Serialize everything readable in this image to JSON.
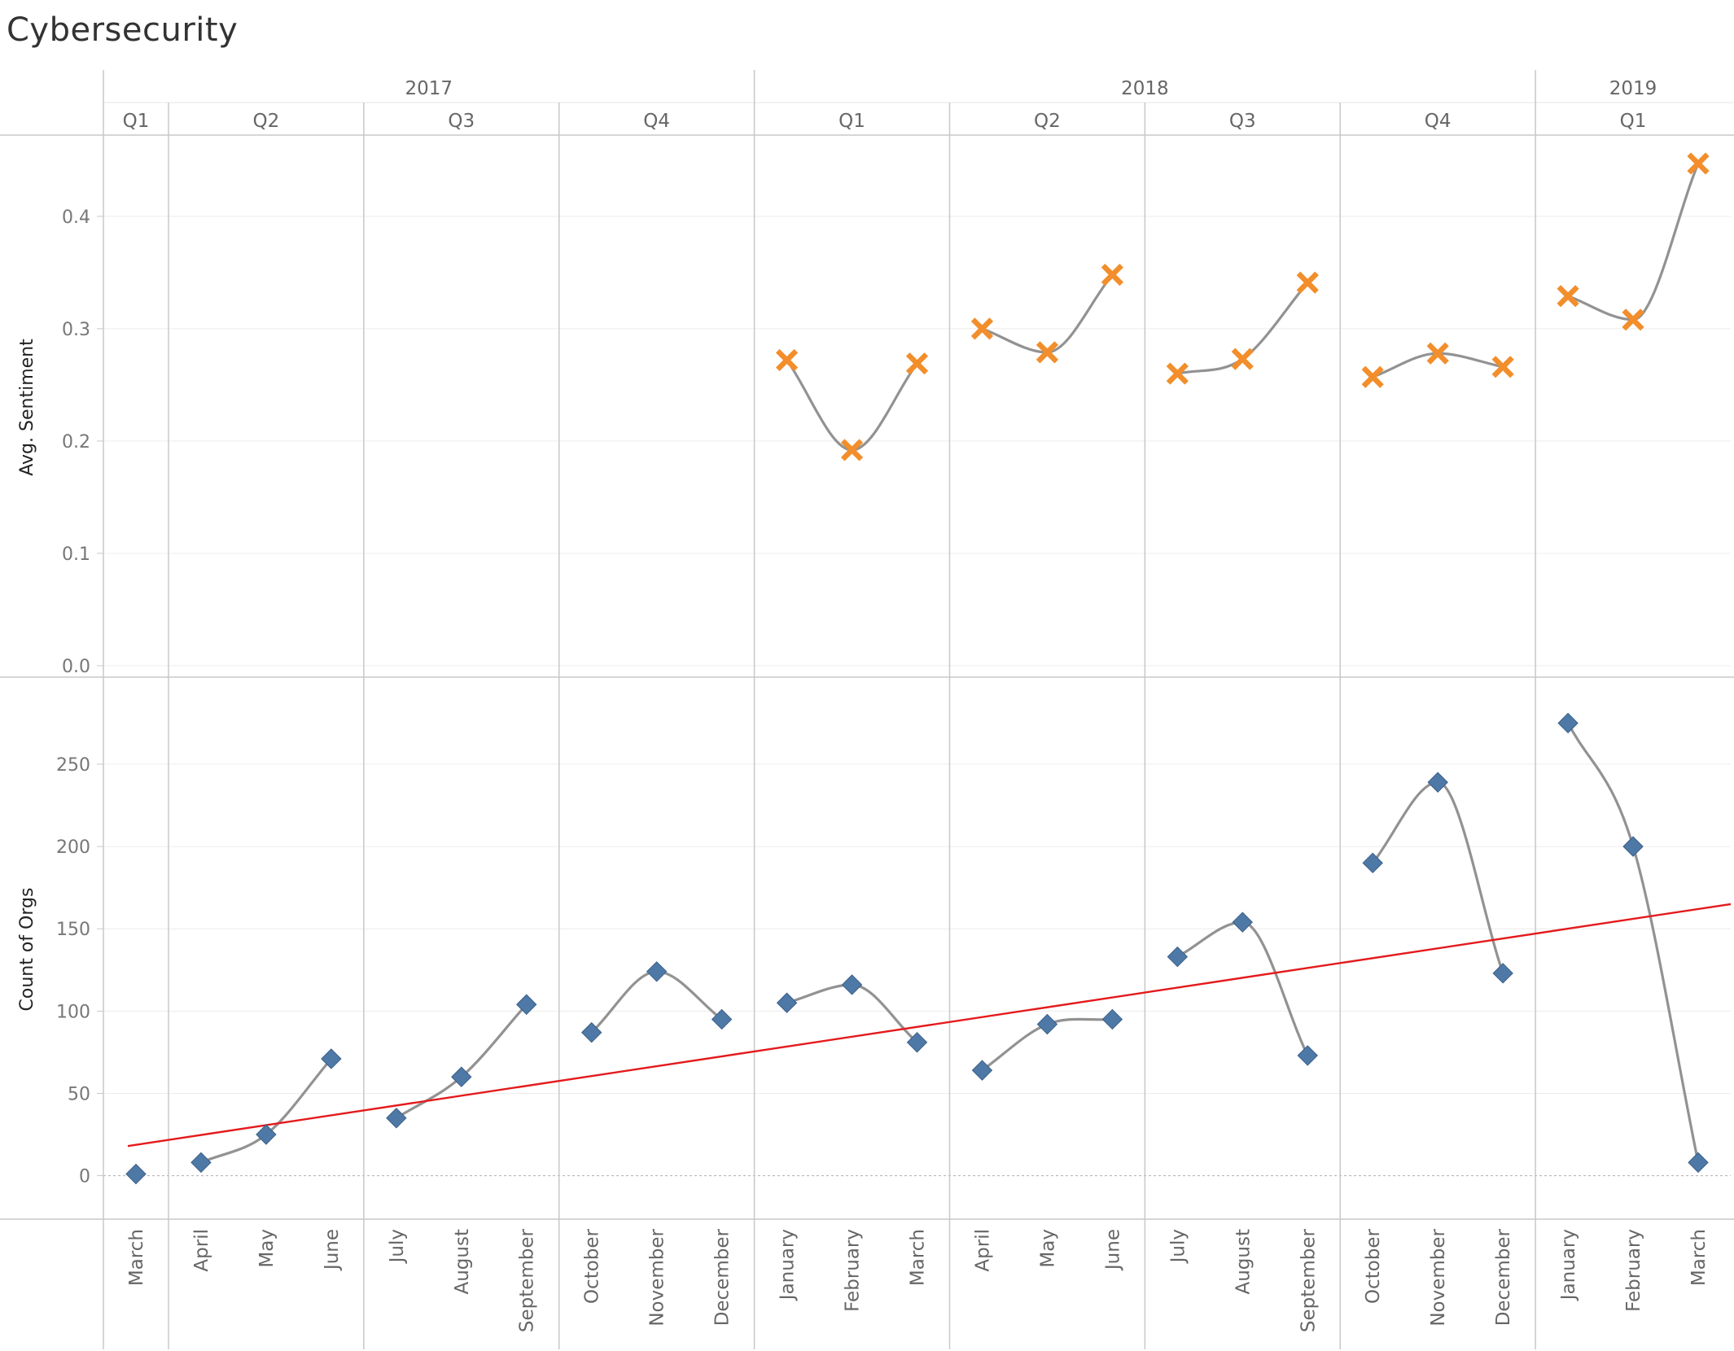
{
  "title": "Cybersecurity",
  "chart_data": {
    "type": "scatter",
    "title": "Cybersecurity",
    "years": [
      {
        "label": "2017",
        "quarters": [
          "Q1",
          "Q2",
          "Q3",
          "Q4"
        ]
      },
      {
        "label": "2018",
        "quarters": [
          "Q1",
          "Q2",
          "Q3",
          "Q4"
        ]
      },
      {
        "label": "2019",
        "quarters": [
          "Q1"
        ]
      }
    ],
    "quarter_months": [
      [
        "March"
      ],
      [
        "April",
        "May",
        "June"
      ],
      [
        "July",
        "August",
        "September"
      ],
      [
        "October",
        "November",
        "December"
      ],
      [
        "January",
        "February",
        "March"
      ],
      [
        "April",
        "May",
        "June"
      ],
      [
        "July",
        "August",
        "September"
      ],
      [
        "October",
        "November",
        "December"
      ],
      [
        "January",
        "February",
        "March"
      ]
    ],
    "x": [
      "March",
      "April",
      "May",
      "June",
      "July",
      "August",
      "September",
      "October",
      "November",
      "December",
      "January",
      "February",
      "March",
      "April",
      "May",
      "June",
      "July",
      "August",
      "September",
      "October",
      "November",
      "December",
      "January",
      "February",
      "March"
    ],
    "panels": [
      {
        "ylabel": "Avg. Sentiment",
        "ylim": [
          0,
          0.46
        ],
        "ticks": [
          "0.0",
          "0.1",
          "0.2",
          "0.3",
          "0.4"
        ],
        "tick_values": [
          0,
          0.1,
          0.2,
          0.3,
          0.4
        ],
        "marker": "cross",
        "color": "#f28e2b",
        "values": [
          null,
          null,
          null,
          null,
          null,
          null,
          null,
          null,
          null,
          null,
          0.272,
          0.192,
          0.269,
          0.3,
          0.279,
          0.348,
          0.26,
          0.273,
          0.341,
          0.257,
          0.278,
          0.266,
          0.329,
          0.308,
          0.447
        ]
      },
      {
        "ylabel": "Count of Orgs",
        "ylim": [
          -20,
          295
        ],
        "ticks": [
          "0",
          "50",
          "100",
          "150",
          "200",
          "250"
        ],
        "tick_values": [
          0,
          50,
          100,
          150,
          200,
          250
        ],
        "marker": "diamond",
        "color": "#4e79a7",
        "values": [
          1,
          8,
          25,
          71,
          35,
          60,
          104,
          87,
          124,
          95,
          105,
          116,
          81,
          64,
          92,
          95,
          133,
          154,
          73,
          190,
          239,
          123,
          275,
          200,
          8
        ],
        "trend_line": {
          "color": "#e41a1c",
          "start": 18,
          "end": 165
        }
      }
    ],
    "grid": true,
    "smooth_line_color": "#8c8c8c"
  }
}
